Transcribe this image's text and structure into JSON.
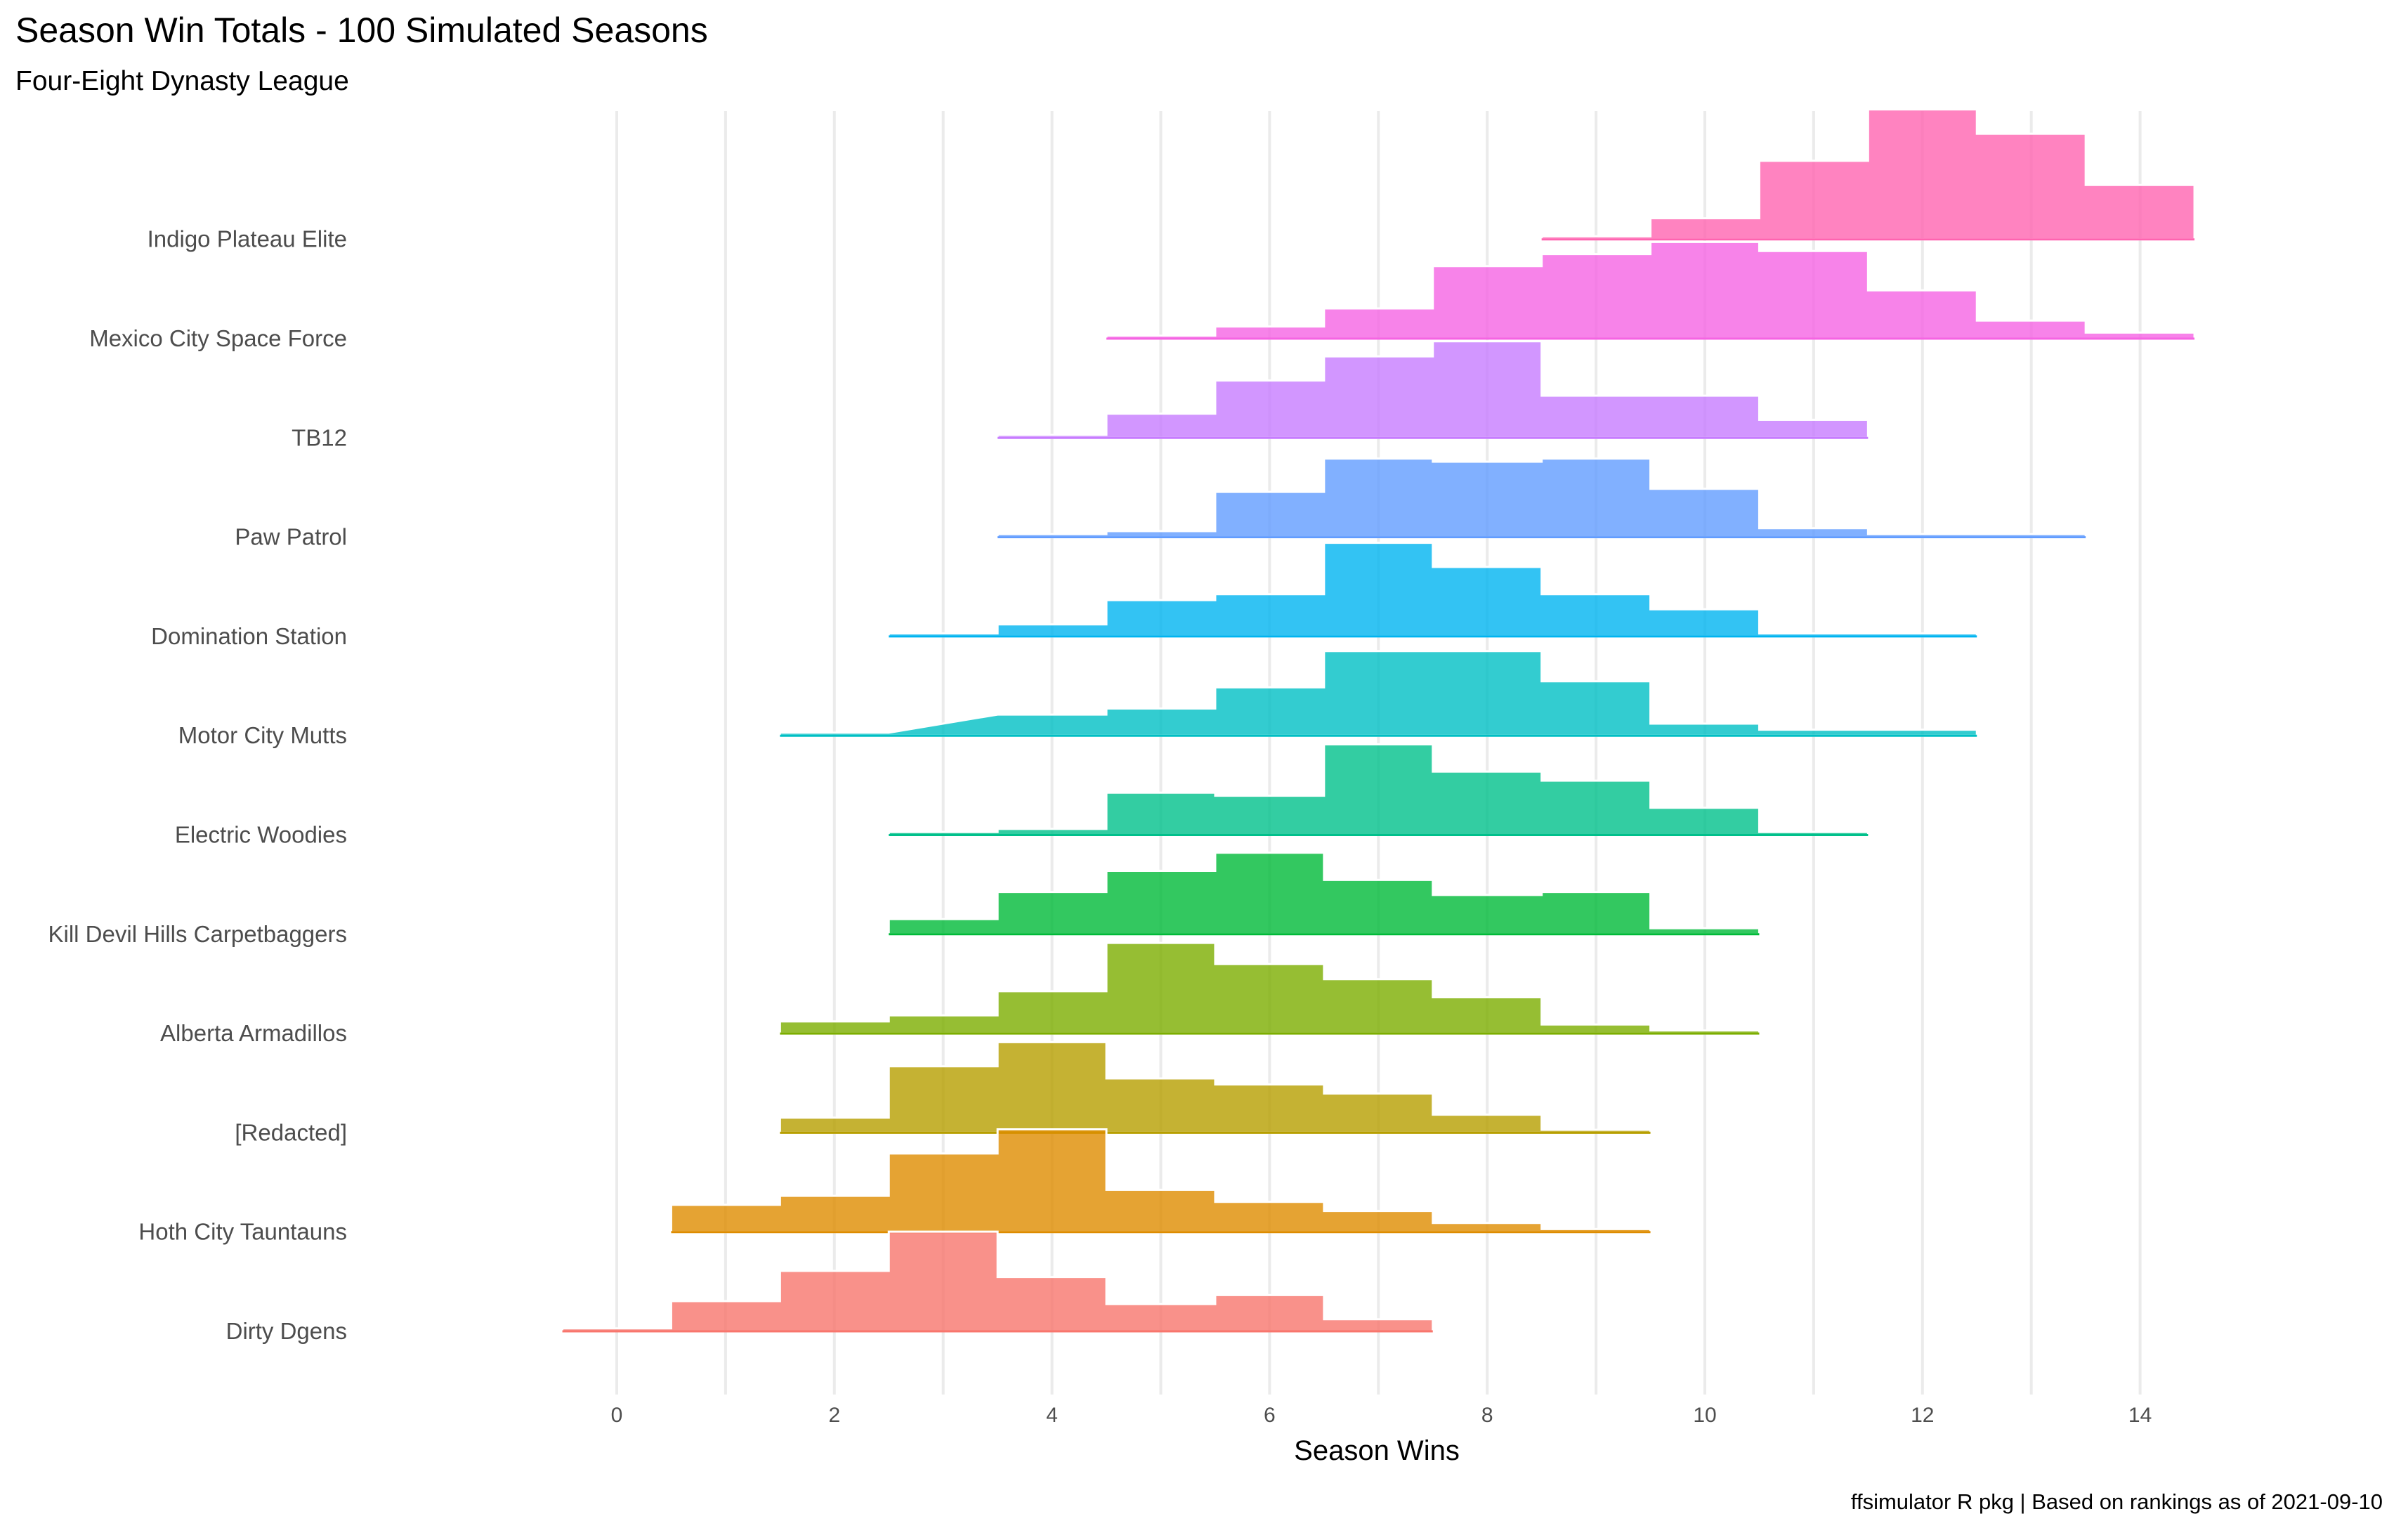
{
  "chart_data": {
    "type": "ridgeline-histogram",
    "title": "Season Win Totals - 100 Simulated Seasons",
    "subtitle": "Four-Eight Dynasty League",
    "xlabel": "Season Wins",
    "ylabel": "",
    "caption": "ffsimulator R pkg | Based on rankings as of 2021-09-10",
    "xlim": [
      -0.5,
      14.5
    ],
    "x_ticks": [
      0,
      2,
      4,
      6,
      8,
      10,
      12,
      14
    ],
    "x_tick_labels": [
      "0",
      "2",
      "4",
      "6",
      "8",
      "10",
      "12",
      "14"
    ],
    "grid": true,
    "legend": "none",
    "series": [
      {
        "name": "Dirty Dgens",
        "color": "#F8766D",
        "wins": [
          0,
          1,
          2,
          3,
          4,
          5,
          6,
          7
        ],
        "counts": [
          1,
          10,
          20,
          33,
          18,
          9,
          12,
          4
        ]
      },
      {
        "name": "Hoth City Tauntauns",
        "color": "#DE8C00",
        "wins": [
          1,
          2,
          3,
          4,
          5,
          6,
          7,
          8,
          9
        ],
        "counts": [
          9,
          12,
          26,
          34,
          14,
          10,
          7,
          3,
          1
        ]
      },
      {
        "name": "[Redacted]",
        "color": "#B79F00",
        "wins": [
          2,
          3,
          4,
          5,
          6,
          7,
          8,
          9
        ],
        "counts": [
          5,
          22,
          30,
          18,
          16,
          13,
          6,
          1
        ]
      },
      {
        "name": "Alberta Armadillos",
        "color": "#7CAE00",
        "wins": [
          2,
          3,
          4,
          5,
          6,
          7,
          8,
          9,
          10
        ],
        "counts": [
          4,
          6,
          14,
          30,
          23,
          18,
          12,
          3,
          1
        ]
      },
      {
        "name": "Kill Devil Hills Carpetbaggers",
        "color": "#00BA38",
        "wins": [
          3,
          4,
          5,
          6,
          7,
          8,
          9,
          10
        ],
        "counts": [
          5,
          14,
          21,
          27,
          18,
          13,
          14,
          2
        ]
      },
      {
        "name": "Electric Woodies",
        "color": "#00C08B",
        "wins": [
          3,
          4,
          5,
          6,
          7,
          8,
          9,
          10,
          11
        ],
        "counts": [
          1,
          2,
          14,
          13,
          30,
          21,
          18,
          9,
          1
        ]
      },
      {
        "name": "Motor City Mutts",
        "color": "#00BFC4",
        "wins": [
          2,
          4,
          5,
          6,
          7,
          8,
          9,
          10,
          11,
          12
        ],
        "counts": [
          1,
          7,
          9,
          16,
          28,
          28,
          18,
          4,
          2,
          2
        ]
      },
      {
        "name": "Domination Station",
        "color": "#00B4F0",
        "wins": [
          3,
          4,
          5,
          6,
          7,
          8,
          9,
          10,
          11,
          12
        ],
        "counts": [
          1,
          4,
          12,
          14,
          31,
          23,
          14,
          9,
          1,
          1
        ]
      },
      {
        "name": "Paw Patrol",
        "color": "#619CFF",
        "wins": [
          4,
          5,
          6,
          7,
          8,
          9,
          10,
          11,
          12,
          13
        ],
        "counts": [
          1,
          2,
          15,
          26,
          25,
          26,
          16,
          3,
          1,
          1
        ]
      },
      {
        "name": "TB12",
        "color": "#C77CFF",
        "wins": [
          4,
          5,
          6,
          7,
          8,
          9,
          10,
          11
        ],
        "counts": [
          1,
          8,
          19,
          27,
          32,
          14,
          14,
          6
        ]
      },
      {
        "name": "Mexico City Space Force",
        "color": "#F564E3",
        "wins": [
          5,
          6,
          7,
          8,
          9,
          10,
          11,
          12,
          13,
          14
        ],
        "counts": [
          1,
          4,
          10,
          24,
          28,
          32,
          29,
          16,
          6,
          2
        ]
      },
      {
        "name": "Indigo Plateau Elite",
        "color": "#FF64B0",
        "wins": [
          9,
          10,
          11,
          12,
          13,
          14
        ],
        "counts": [
          1,
          7,
          26,
          43,
          35,
          18
        ]
      }
    ]
  }
}
